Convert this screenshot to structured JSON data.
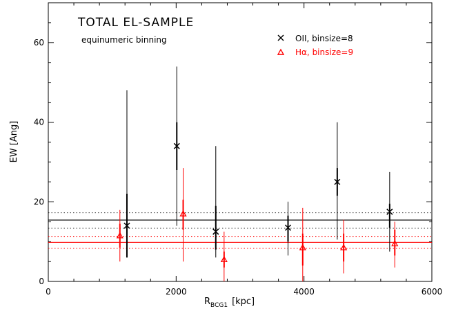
{
  "chart_data": {
    "type": "scatter",
    "title": "TOTAL EL-SAMPLE",
    "subtitle": "equinumeric binning",
    "xlabel_main": "R",
    "xlabel_sub": "BCG1",
    "xlabel_unit": "[kpc]",
    "ylabel": "EW [Ang]",
    "xlim": [
      0,
      6000
    ],
    "ylim": [
      0,
      70
    ],
    "x_ticks": [
      0,
      2000,
      4000,
      6000
    ],
    "y_ticks": [
      0,
      20,
      40,
      60
    ],
    "grid": false,
    "legend_position": "top-right",
    "series": [
      {
        "name": "OII, binsize=8",
        "marker": "x",
        "color": "#000000",
        "points": [
          {
            "x": 1230,
            "y": 14.0,
            "inner": [
              6,
              22
            ],
            "outer": [
              6,
              48
            ]
          },
          {
            "x": 2010,
            "y": 34.0,
            "inner": [
              28,
              40
            ],
            "outer": [
              14,
              54
            ]
          },
          {
            "x": 2620,
            "y": 12.5,
            "inner": [
              8,
              19
            ],
            "outer": [
              6,
              34
            ]
          },
          {
            "x": 3750,
            "y": 13.5,
            "inner": [
              10,
              16.5
            ],
            "outer": [
              6.5,
              20
            ]
          },
          {
            "x": 4520,
            "y": 25.0,
            "inner": [
              21.5,
              28.5
            ],
            "outer": [
              10.5,
              40
            ]
          },
          {
            "x": 5340,
            "y": 17.5,
            "inner": [
              13.5,
              19.5
            ],
            "outer": [
              7.5,
              27.5
            ]
          }
        ],
        "mean": 15.4,
        "mean_band": [
          13.4,
          17.3
        ]
      },
      {
        "name": "Hα, binsize=9",
        "marker": "triangle",
        "color": "#ff0000",
        "points": [
          {
            "x": 1120,
            "y": 11.5,
            "inner": [
              8.5,
              14.5
            ],
            "outer": [
              5,
              18
            ]
          },
          {
            "x": 2110,
            "y": 17.0,
            "inner": [
              13,
              20.5
            ],
            "outer": [
              5,
              28.5
            ]
          },
          {
            "x": 2750,
            "y": 5.5,
            "inner": [
              3.5,
              7.5
            ],
            "outer": [
              0,
              12.5
            ]
          },
          {
            "x": 3980,
            "y": 8.5,
            "inner": [
              4,
              12
            ],
            "outer": [
              0,
              18.5
            ]
          },
          {
            "x": 4620,
            "y": 8.5,
            "inner": [
              5,
              12
            ],
            "outer": [
              2,
              15.5
            ]
          },
          {
            "x": 5420,
            "y": 9.5,
            "inner": [
              6.5,
              13
            ],
            "outer": [
              3.5,
              15
            ]
          }
        ],
        "mean": 9.8,
        "mean_band": [
          8.3,
          11.3
        ]
      }
    ]
  }
}
